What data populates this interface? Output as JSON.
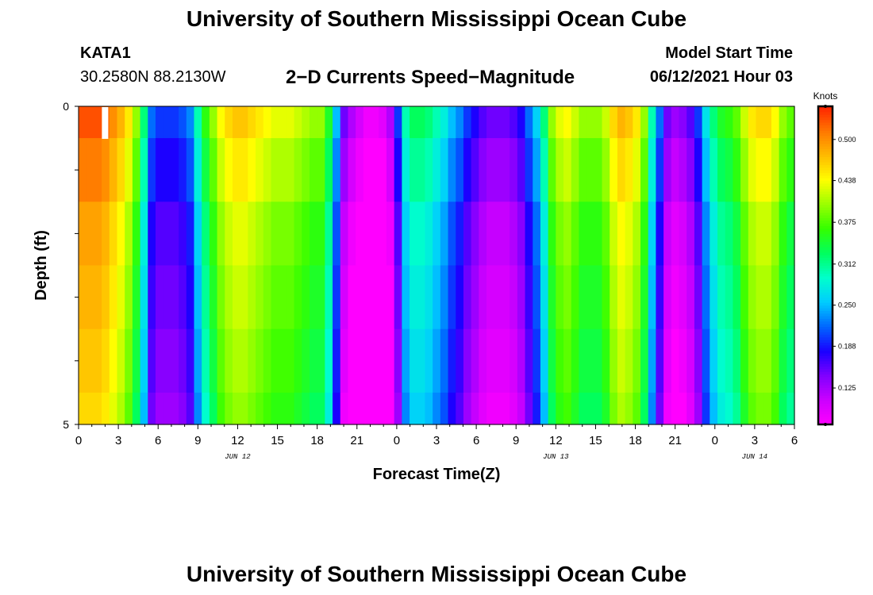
{
  "page": {
    "title_top": "University of Southern Mississippi Ocean Cube",
    "title_bottom": "University of Southern Mississippi Ocean Cube",
    "station": "KATA1",
    "location": "30.2580N  88.2130W",
    "subtitle": "2−D Currents Speed−Magnitude",
    "model_start_label": "Model Start Time",
    "model_start_value": "06/12/2021 Hour 03"
  },
  "chart_data": {
    "type": "heatmap",
    "xlabel": "Forecast Time(Z)",
    "ylabel": "Depth (ft)",
    "x_ticks": [
      "0",
      "3",
      "6",
      "9",
      "12",
      "15",
      "18",
      "21",
      "0",
      "3",
      "6",
      "9",
      "12",
      "15",
      "18",
      "21",
      "0",
      "3",
      "6"
    ],
    "date_labels": [
      {
        "text": "JUN 12",
        "hour": 12
      },
      {
        "text": "JUN 13",
        "hour": 36
      },
      {
        "text": "JUN 14",
        "hour": 51
      }
    ],
    "y_ticks": [
      "0",
      "5"
    ],
    "y_range_ft": [
      0,
      5
    ],
    "x_range_hours": [
      0,
      54
    ],
    "colorbar": {
      "title": "Knots",
      "tick_labels": [
        "0.500",
        "0.438",
        "0.375",
        "0.312",
        "0.250",
        "0.188",
        "0.125"
      ],
      "tick_values": [
        0.5,
        0.438,
        0.375,
        0.312,
        0.25,
        0.188,
        0.125
      ],
      "range": [
        0.07,
        0.55
      ],
      "colors": [
        "#ff00ff",
        "#cc00ff",
        "#8000ff",
        "#1a00ff",
        "#0066ff",
        "#00ccff",
        "#00ffcc",
        "#00ff60",
        "#33ff00",
        "#99ff00",
        "#ffff00",
        "#ffbb00",
        "#ff7700",
        "#ff2200"
      ]
    },
    "depth_layers_ft": [
      0,
      0.5,
      1.5,
      2.5,
      3.5,
      4.5,
      5
    ],
    "base_profile_knots": [
      0.53,
      0.53,
      0.53,
      0.52,
      0.5,
      0.48,
      0.45,
      0.4,
      0.32,
      0.22,
      0.2,
      0.2,
      0.2,
      0.21,
      0.23,
      0.3,
      0.36,
      0.4,
      0.44,
      0.46,
      0.47,
      0.47,
      0.46,
      0.45,
      0.44,
      0.43,
      0.43,
      0.43,
      0.42,
      0.41,
      0.4,
      0.4,
      0.35,
      0.25,
      0.15,
      0.12,
      0.1,
      0.08,
      0.08,
      0.09,
      0.12,
      0.2,
      0.3,
      0.33,
      0.33,
      0.32,
      0.3,
      0.28,
      0.25,
      0.23,
      0.2,
      0.18,
      0.16,
      0.15,
      0.15,
      0.15,
      0.16,
      0.18,
      0.22,
      0.26,
      0.32,
      0.4,
      0.43,
      0.44,
      0.42,
      0.4,
      0.4,
      0.4,
      0.42,
      0.46,
      0.48,
      0.47,
      0.45,
      0.4,
      0.3,
      0.22,
      0.15,
      0.13,
      0.14,
      0.16,
      0.2,
      0.27,
      0.32,
      0.35,
      0.36,
      0.38,
      0.42,
      0.45,
      0.46,
      0.46,
      0.44,
      0.4,
      0.38
    ],
    "depth_adjustment_knots": [
      0,
      -0.02,
      -0.04,
      -0.05,
      -0.06,
      -0.07
    ],
    "marker_hour": 2
  }
}
